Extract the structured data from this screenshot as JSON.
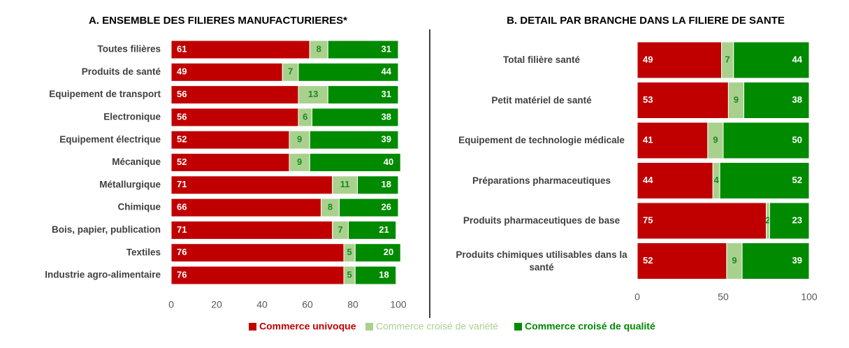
{
  "chart_data": [
    {
      "type": "bar",
      "orientation": "horizontal",
      "stacked": true,
      "title": "A. ENSEMBLE DES FILIERES MANUFACTURIERES*",
      "categories": [
        "Toutes filières",
        "Produits de santé",
        "Equipement de transport",
        "Electronique",
        "Equipement électrique",
        "Mécanique",
        "Métallurgique",
        "Chimique",
        "Bois, papier, publication",
        "Textiles",
        "Industrie agro-alimentaire"
      ],
      "series": [
        {
          "name": "Commerce univoque",
          "color": "#c00000",
          "values": [
            61,
            49,
            56,
            56,
            52,
            52,
            71,
            66,
            71,
            76,
            76
          ]
        },
        {
          "name": "Commerce croisé de variété",
          "color": "#a9d18e",
          "values": [
            8,
            7,
            13,
            6,
            9,
            9,
            11,
            8,
            7,
            5,
            5
          ]
        },
        {
          "name": "Commerce croisé de qualité",
          "color": "#008a00",
          "values": [
            31,
            44,
            31,
            38,
            39,
            40,
            18,
            26,
            21,
            20,
            18
          ]
        }
      ],
      "xlim": [
        0,
        100
      ],
      "xticks": [
        0,
        20,
        40,
        60,
        80,
        100
      ]
    },
    {
      "type": "bar",
      "orientation": "horizontal",
      "stacked": true,
      "title": "B. DETAIL PAR BRANCHE DANS LA FILIERE DE SANTE",
      "categories": [
        "Total filière santé",
        "Petit matériel de santé",
        "Equipement de technologie médicale",
        "Préparations pharmaceutiques",
        "Produits pharmaceutiques de base",
        "Produits chimiques utilisables dans la santé"
      ],
      "series": [
        {
          "color": "#c00000",
          "values": [
            49,
            53,
            41,
            44,
            75,
            52
          ]
        },
        {
          "color": "#a9d18e",
          "values": [
            7,
            9,
            9,
            4,
            2,
            9
          ]
        },
        {
          "color": "#008a00",
          "values": [
            44,
            38,
            50,
            52,
            23,
            39
          ]
        }
      ],
      "xlim": [
        0,
        100
      ],
      "xticks": [
        0,
        50,
        100
      ]
    }
  ]
}
